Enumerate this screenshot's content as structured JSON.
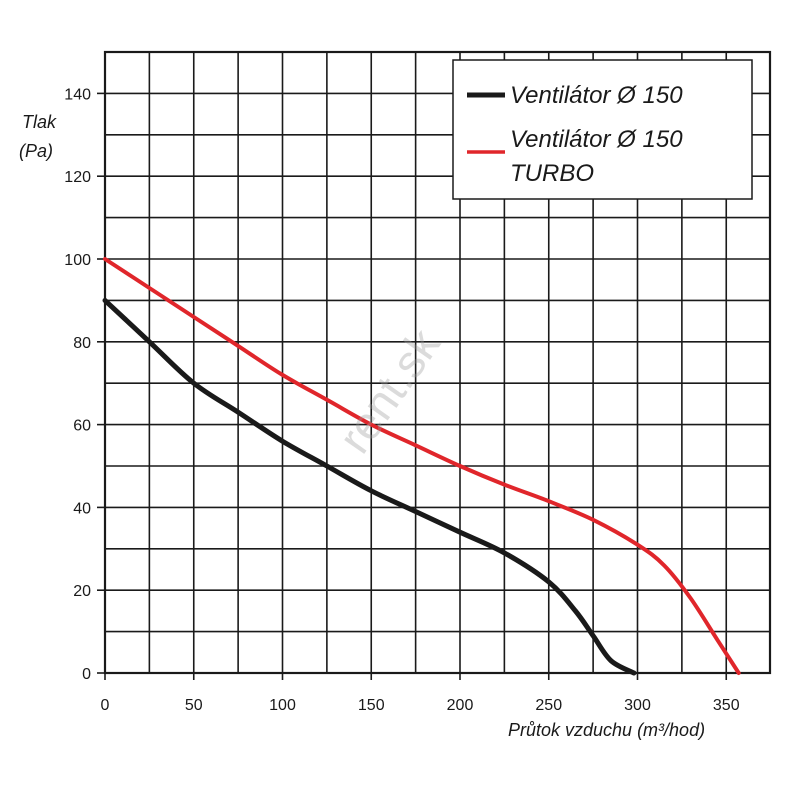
{
  "chart_data": {
    "type": "line",
    "ylabel_line1": "Tlak",
    "ylabel_line2": "(Pa)",
    "xlabel": "Průtok vzduchu (m³/hod)",
    "xlim": [
      0,
      375
    ],
    "ylim": [
      0,
      150
    ],
    "x_ticks": [
      0,
      50,
      100,
      150,
      200,
      250,
      300,
      350
    ],
    "y_ticks": [
      0,
      20,
      40,
      60,
      80,
      100,
      120,
      140
    ],
    "grid_x_step": 25,
    "grid_y_step": 10,
    "grid": true,
    "legend_position": "top-right",
    "series": [
      {
        "name": "Ventilátor Ø 150",
        "color": "#1a1a1a",
        "x": [
          0,
          25,
          50,
          75,
          100,
          125,
          150,
          175,
          200,
          225,
          250,
          265,
          275,
          285,
          298
        ],
        "y": [
          90,
          80,
          70,
          63,
          56,
          50,
          44,
          39,
          34,
          29,
          22,
          15,
          9,
          3,
          0
        ]
      },
      {
        "name_line1": "Ventilátor Ø 150",
        "name_line2": "TURBO",
        "color": "#e0262b",
        "x": [
          0,
          25,
          50,
          75,
          100,
          125,
          150,
          175,
          200,
          225,
          250,
          275,
          300,
          315,
          330,
          345,
          357
        ],
        "y": [
          100,
          93,
          86,
          79,
          72,
          66,
          60,
          55,
          50,
          45.5,
          41.5,
          37,
          31,
          26,
          18,
          8,
          0
        ]
      }
    ],
    "watermark": "rent.sk"
  }
}
